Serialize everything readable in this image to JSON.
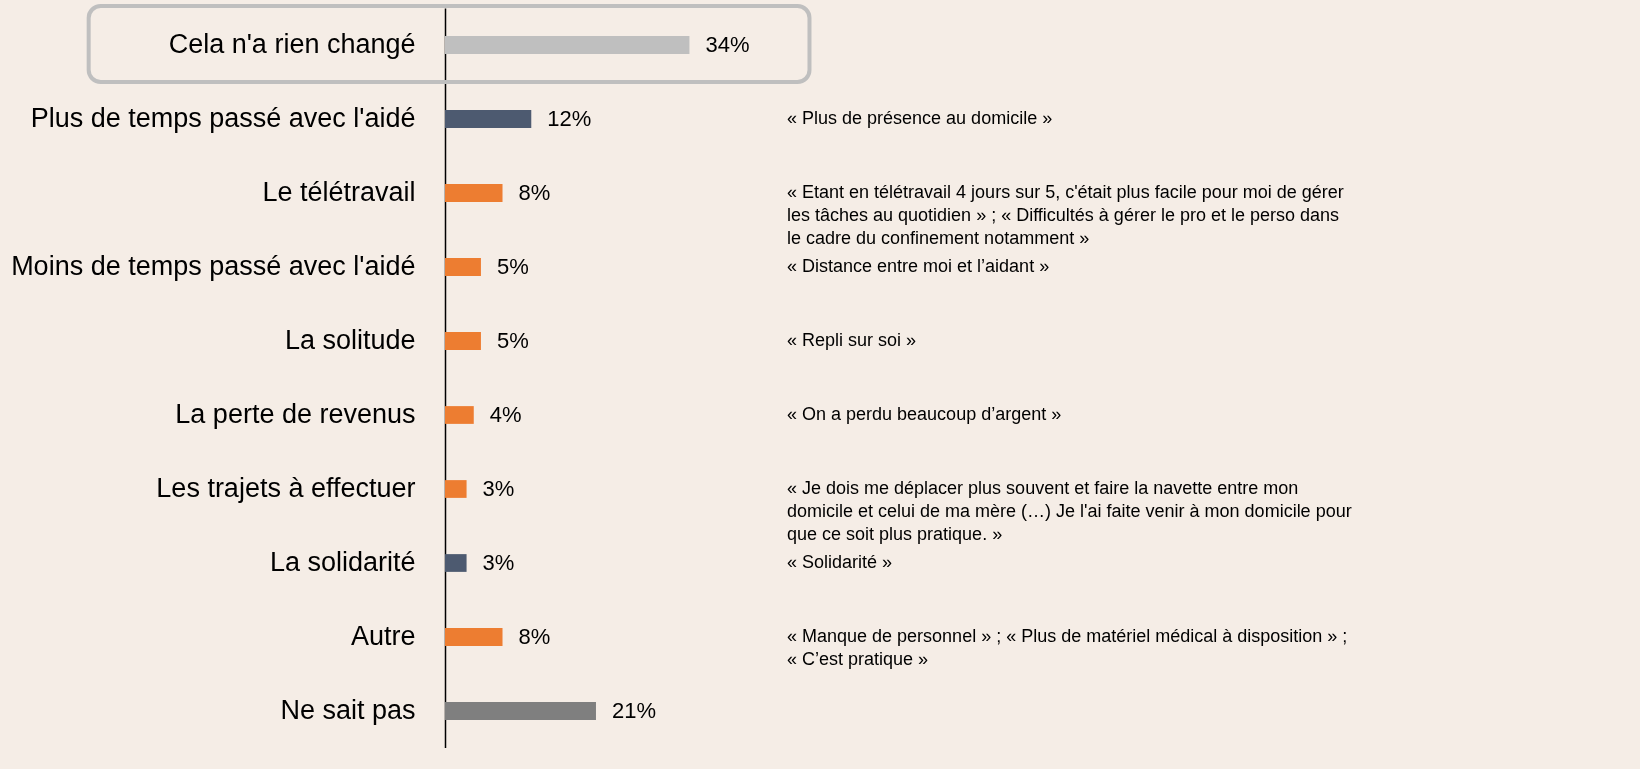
{
  "chart_data": {
    "type": "bar",
    "orientation": "horizontal",
    "value_labels": [
      "34%",
      "12%",
      "8%",
      "5%",
      "5%",
      "4%",
      "3%",
      "3%",
      "8%",
      "21%"
    ],
    "categories": [
      "Cela n'a rien changé",
      "Plus de temps passé avec l'aidé",
      "Le télétravail",
      "Moins de temps passé avec l'aidé",
      "La solitude",
      "La perte de revenus",
      "Les trajets à effectuer",
      "La solidarité",
      "Autre",
      "Ne sait pas"
    ],
    "values": [
      34,
      12,
      8,
      5,
      5,
      4,
      3,
      3,
      8,
      21
    ],
    "colors": [
      "#bfbfbf",
      "#4d5a70",
      "#ed7d31",
      "#ed7d31",
      "#ed7d31",
      "#ed7d31",
      "#ed7d31",
      "#4d5a70",
      "#ed7d31",
      "#7f7f7f"
    ],
    "annotations": [
      "« Plus de présence au domicile »",
      "« Etant en télétravail 4 jours sur 5, c'était plus facile pour moi de gérer\nles tâches au quotidien » ; « Difficultés à gérer le pro et le perso dans\nle cadre du confinement notamment »",
      "« Distance entre moi et l’aidant »",
      "« Repli sur soi »",
      "« On a perdu beaucoup d’argent »",
      "« Je dois me déplacer plus souvent et faire la navette entre mon\ndomicile et celui de ma mère (…) Je l'ai faite venir à mon domicile pour\nque ce soit plus pratique. »",
      "« Solidarité »",
      "« Manque de personnel » ; « Plus de matériel médical à disposition » ;\n« C’est pratique »"
    ]
  }
}
